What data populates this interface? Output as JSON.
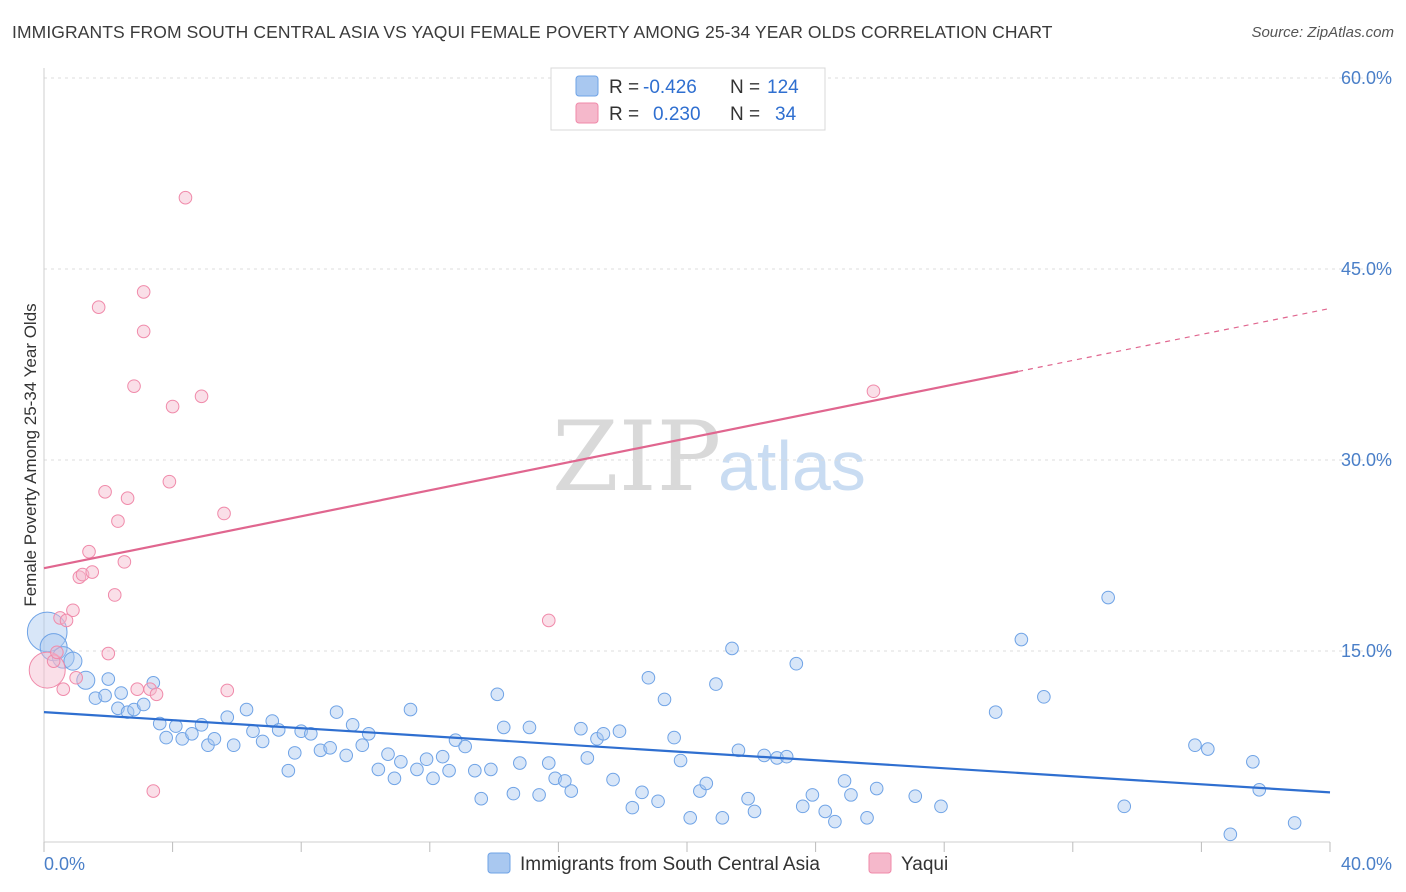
{
  "header": {
    "title": "IMMIGRANTS FROM SOUTH CENTRAL ASIA VS YAQUI FEMALE POVERTY AMONG 25-34 YEAR OLDS CORRELATION CHART",
    "source": "Source: ZipAtlas.com"
  },
  "watermark": {
    "zip": "ZIP",
    "atlas": "atlas"
  },
  "legend": {
    "rows": [
      {
        "r_label": "R =",
        "r_value": "-0.426",
        "n_label": "N =",
        "n_value": "124",
        "color": "#a9c8f0"
      },
      {
        "r_label": "R =",
        "r_value": "0.230",
        "n_label": "N =",
        "n_value": "34",
        "color": "#f5b8cb"
      }
    ]
  },
  "bottom_legend": {
    "items": [
      {
        "label": "Immigrants from South Central Asia",
        "color": "#a9c8f0"
      },
      {
        "label": "Yaqui",
        "color": "#f5b8cb"
      }
    ]
  },
  "chart_data": {
    "type": "scatter",
    "title": "IMMIGRANTS FROM SOUTH CENTRAL ASIA VS YAQUI FEMALE POVERTY AMONG 25-34 YEAR OLDS CORRELATION CHART",
    "xlabel": "",
    "ylabel": "Female Poverty Among 25-34 Year Olds",
    "xlim": [
      0,
      40
    ],
    "ylim": [
      0,
      60
    ],
    "x_tick_labels": [
      "0.0%",
      "40.0%"
    ],
    "y_tick_labels": [
      "15.0%",
      "30.0%",
      "45.0%",
      "60.0%"
    ],
    "y_ticks": [
      15,
      30,
      45,
      60
    ],
    "grid": "horizontal dashed",
    "series": [
      {
        "name": "Immigrants from South Central Asia",
        "color": "#6fa3e6",
        "trend": {
          "x": [
            0,
            40
          ],
          "y": [
            10.2,
            3.9
          ],
          "dashed_from": null
        },
        "points": [
          [
            0.1,
            16.5,
            2.2
          ],
          [
            0.3,
            15.3,
            1.5
          ],
          [
            0.6,
            14.5,
            1.2
          ],
          [
            0.9,
            14.2,
            1
          ],
          [
            1.3,
            12.7,
            1
          ],
          [
            1.6,
            11.3,
            0.7
          ],
          [
            1.9,
            11.5,
            0.7
          ],
          [
            2.0,
            12.8,
            0.7
          ],
          [
            2.3,
            10.5,
            0.7
          ],
          [
            2.4,
            11.7,
            0.7
          ],
          [
            2.6,
            10.2,
            0.7
          ],
          [
            2.8,
            10.4,
            0.7
          ],
          [
            3.1,
            10.8,
            0.7
          ],
          [
            3.4,
            12.5,
            0.7
          ],
          [
            3.6,
            9.3,
            0.7
          ],
          [
            3.8,
            8.2,
            0.7
          ],
          [
            4.1,
            9.1,
            0.7
          ],
          [
            4.3,
            8.1,
            0.7
          ],
          [
            4.6,
            8.5,
            0.7
          ],
          [
            4.9,
            9.2,
            0.7
          ],
          [
            5.1,
            7.6,
            0.7
          ],
          [
            5.3,
            8.1,
            0.7
          ],
          [
            5.7,
            9.8,
            0.7
          ],
          [
            5.9,
            7.6,
            0.7
          ],
          [
            6.3,
            10.4,
            0.7
          ],
          [
            6.5,
            8.7,
            0.7
          ],
          [
            6.8,
            7.9,
            0.7
          ],
          [
            7.1,
            9.5,
            0.7
          ],
          [
            7.3,
            8.8,
            0.7
          ],
          [
            7.6,
            5.6,
            0.7
          ],
          [
            7.8,
            7.0,
            0.7
          ],
          [
            8.0,
            8.7,
            0.7
          ],
          [
            8.3,
            8.5,
            0.7
          ],
          [
            8.6,
            7.2,
            0.7
          ],
          [
            8.9,
            7.4,
            0.7
          ],
          [
            9.1,
            10.2,
            0.7
          ],
          [
            9.4,
            6.8,
            0.7
          ],
          [
            9.6,
            9.2,
            0.7
          ],
          [
            9.9,
            7.6,
            0.7
          ],
          [
            10.1,
            8.5,
            0.7
          ],
          [
            10.4,
            5.7,
            0.7
          ],
          [
            10.7,
            6.9,
            0.7
          ],
          [
            10.9,
            5.0,
            0.7
          ],
          [
            11.1,
            6.3,
            0.7
          ],
          [
            11.4,
            10.4,
            0.7
          ],
          [
            11.6,
            5.7,
            0.7
          ],
          [
            11.9,
            6.5,
            0.7
          ],
          [
            12.1,
            5.0,
            0.7
          ],
          [
            12.4,
            6.7,
            0.7
          ],
          [
            12.6,
            5.6,
            0.7
          ],
          [
            12.8,
            8.0,
            0.7
          ],
          [
            13.1,
            7.5,
            0.7
          ],
          [
            13.4,
            5.6,
            0.7
          ],
          [
            13.6,
            3.4,
            0.7
          ],
          [
            13.9,
            5.7,
            0.7
          ],
          [
            14.1,
            11.6,
            0.7
          ],
          [
            14.3,
            9.0,
            0.7
          ],
          [
            14.6,
            3.8,
            0.7
          ],
          [
            14.8,
            6.2,
            0.7
          ],
          [
            15.1,
            9.0,
            0.7
          ],
          [
            15.4,
            3.7,
            0.7
          ],
          [
            15.7,
            6.2,
            0.7
          ],
          [
            15.9,
            5.0,
            0.7
          ],
          [
            16.2,
            4.8,
            0.7
          ],
          [
            16.4,
            4.0,
            0.7
          ],
          [
            16.7,
            8.9,
            0.7
          ],
          [
            16.9,
            6.6,
            0.7
          ],
          [
            17.2,
            8.1,
            0.7
          ],
          [
            17.4,
            8.5,
            0.7
          ],
          [
            17.7,
            4.9,
            0.7
          ],
          [
            17.9,
            8.7,
            0.7
          ],
          [
            18.3,
            2.7,
            0.7
          ],
          [
            18.6,
            3.9,
            0.7
          ],
          [
            18.8,
            12.9,
            0.7
          ],
          [
            19.1,
            3.2,
            0.7
          ],
          [
            19.3,
            11.2,
            0.7
          ],
          [
            19.6,
            8.2,
            0.7
          ],
          [
            19.8,
            6.4,
            0.7
          ],
          [
            20.1,
            1.9,
            0.7
          ],
          [
            20.4,
            4.0,
            0.7
          ],
          [
            20.6,
            4.6,
            0.7
          ],
          [
            20.9,
            12.4,
            0.7
          ],
          [
            21.1,
            1.9,
            0.7
          ],
          [
            21.4,
            15.2,
            0.7
          ],
          [
            21.6,
            7.2,
            0.7
          ],
          [
            21.9,
            3.4,
            0.7
          ],
          [
            22.1,
            2.4,
            0.7
          ],
          [
            22.4,
            6.8,
            0.7
          ],
          [
            22.8,
            6.6,
            0.7
          ],
          [
            23.1,
            6.7,
            0.7
          ],
          [
            23.4,
            14.0,
            0.7
          ],
          [
            23.6,
            2.8,
            0.7
          ],
          [
            23.9,
            3.7,
            0.7
          ],
          [
            24.3,
            2.4,
            0.7
          ],
          [
            24.6,
            1.6,
            0.7
          ],
          [
            24.9,
            4.8,
            0.7
          ],
          [
            25.1,
            3.7,
            0.7
          ],
          [
            25.6,
            1.9,
            0.7
          ],
          [
            25.9,
            4.2,
            0.7
          ],
          [
            27.1,
            3.6,
            0.7
          ],
          [
            27.9,
            2.8,
            0.7
          ],
          [
            29.6,
            10.2,
            0.7
          ],
          [
            30.4,
            15.9,
            0.7
          ],
          [
            31.1,
            11.4,
            0.7
          ],
          [
            33.1,
            19.2,
            0.7
          ],
          [
            33.6,
            2.8,
            0.7
          ],
          [
            35.8,
            7.6,
            0.7
          ],
          [
            36.2,
            7.3,
            0.7
          ],
          [
            36.9,
            0.6,
            0.7
          ],
          [
            37.6,
            6.3,
            0.7
          ],
          [
            37.8,
            4.1,
            0.7
          ],
          [
            38.9,
            1.5,
            0.7
          ]
        ]
      },
      {
        "name": "Yaqui",
        "color": "#f08aaa",
        "trend": {
          "x": [
            0,
            40
          ],
          "y": [
            21.5,
            41.9
          ],
          "dashed_from": 30.3
        },
        "points": [
          [
            0.1,
            13.5,
            2.0
          ],
          [
            0.3,
            14.2,
            0.7
          ],
          [
            0.5,
            17.6,
            0.7
          ],
          [
            0.6,
            12.0,
            0.7
          ],
          [
            0.7,
            17.4,
            0.7
          ],
          [
            0.9,
            18.2,
            0.7
          ],
          [
            1.1,
            20.8,
            0.7
          ],
          [
            1.2,
            21.0,
            0.7
          ],
          [
            1.4,
            22.8,
            0.7
          ],
          [
            1.5,
            21.2,
            0.7
          ],
          [
            1.7,
            42.0,
            0.7
          ],
          [
            1.9,
            27.5,
            0.7
          ],
          [
            2.0,
            14.8,
            0.7
          ],
          [
            2.2,
            19.4,
            0.7
          ],
          [
            2.3,
            25.2,
            0.7
          ],
          [
            2.5,
            22.0,
            0.7
          ],
          [
            2.6,
            27.0,
            0.7
          ],
          [
            2.8,
            35.8,
            0.7
          ],
          [
            2.9,
            12.0,
            0.7
          ],
          [
            3.1,
            43.2,
            0.7
          ],
          [
            3.1,
            40.1,
            0.7
          ],
          [
            3.3,
            12.0,
            0.7
          ],
          [
            3.5,
            11.6,
            0.7
          ],
          [
            3.4,
            4.0,
            0.7
          ],
          [
            3.9,
            28.3,
            0.7
          ],
          [
            4.0,
            34.2,
            0.7
          ],
          [
            4.4,
            50.6,
            0.7
          ],
          [
            4.9,
            35.0,
            0.7
          ],
          [
            5.6,
            25.8,
            0.7
          ],
          [
            5.7,
            11.9,
            0.7
          ],
          [
            15.7,
            17.4,
            0.7
          ],
          [
            25.8,
            35.4,
            0.7
          ],
          [
            1.0,
            12.9,
            0.7
          ],
          [
            0.4,
            14.9,
            0.7
          ]
        ]
      }
    ]
  }
}
